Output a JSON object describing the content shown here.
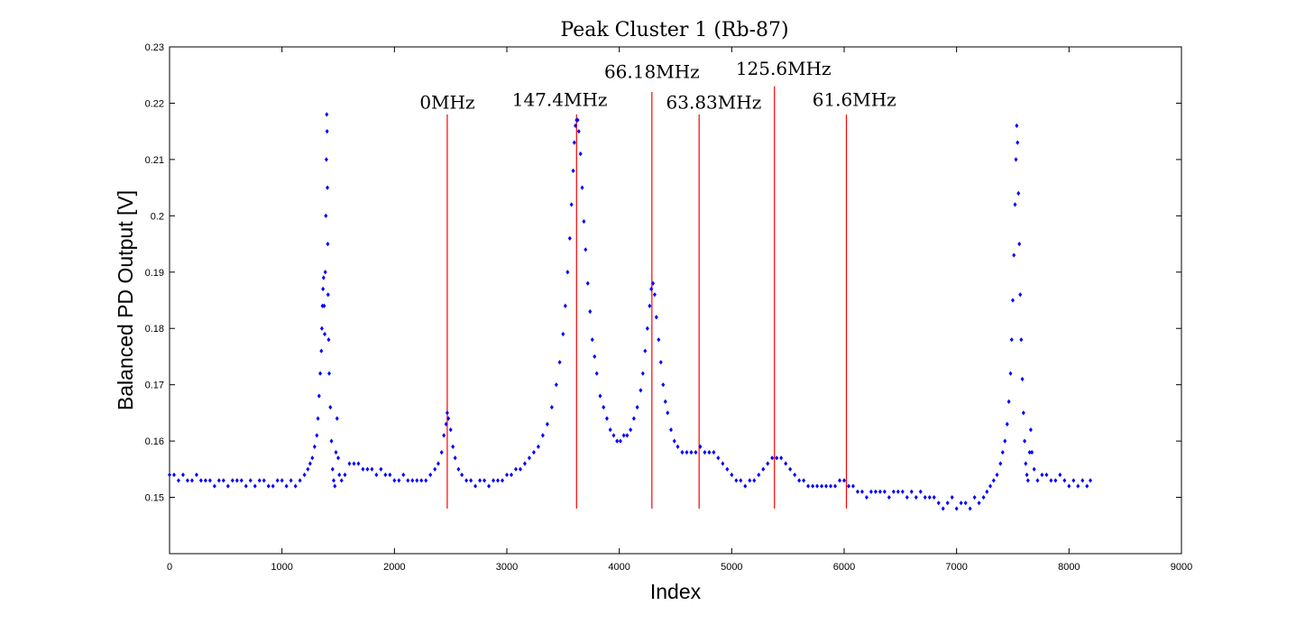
{
  "chart_data": {
    "type": "scatter",
    "title": "Peak Cluster 1 (Rb-87)",
    "xlabel": "Index",
    "ylabel": "Balanced PD Output [V]",
    "xlim": [
      0,
      9000
    ],
    "ylim": [
      0.14,
      0.23
    ],
    "xticks": [
      "0",
      "1000",
      "2000",
      "3000",
      "4000",
      "5000",
      "6000",
      "7000",
      "8000",
      "9000"
    ],
    "yticks": [
      "0.15",
      "0.16",
      "0.17",
      "0.18",
      "0.19",
      "0.2",
      "0.21",
      "0.22",
      "0.23"
    ],
    "grid": false,
    "marker_color": "#0000ff",
    "line_color": "#ff0000",
    "series": [
      {
        "points": [
          [
            0,
            0.154
          ],
          [
            40,
            0.154
          ],
          [
            80,
            0.153
          ],
          [
            120,
            0.154
          ],
          [
            160,
            0.153
          ],
          [
            200,
            0.153
          ],
          [
            240,
            0.154
          ],
          [
            280,
            0.153
          ],
          [
            320,
            0.153
          ],
          [
            360,
            0.153
          ],
          [
            400,
            0.152
          ],
          [
            440,
            0.153
          ],
          [
            480,
            0.153
          ],
          [
            520,
            0.152
          ],
          [
            560,
            0.153
          ],
          [
            600,
            0.153
          ],
          [
            640,
            0.153
          ],
          [
            680,
            0.152
          ],
          [
            720,
            0.153
          ],
          [
            760,
            0.152
          ],
          [
            800,
            0.153
          ],
          [
            840,
            0.153
          ],
          [
            880,
            0.152
          ],
          [
            920,
            0.152
          ],
          [
            960,
            0.153
          ],
          [
            1000,
            0.153
          ],
          [
            1040,
            0.152
          ],
          [
            1080,
            0.153
          ],
          [
            1120,
            0.152
          ],
          [
            1160,
            0.153
          ],
          [
            1200,
            0.154
          ],
          [
            1230,
            0.155
          ],
          [
            1250,
            0.156
          ],
          [
            1270,
            0.157
          ],
          [
            1290,
            0.159
          ],
          [
            1310,
            0.161
          ],
          [
            1320,
            0.164
          ],
          [
            1330,
            0.168
          ],
          [
            1340,
            0.172
          ],
          [
            1350,
            0.176
          ],
          [
            1355,
            0.18
          ],
          [
            1360,
            0.184
          ],
          [
            1365,
            0.187
          ],
          [
            1370,
            0.189
          ],
          [
            1375,
            0.184
          ],
          [
            1380,
            0.179
          ],
          [
            1385,
            0.19
          ],
          [
            1390,
            0.2
          ],
          [
            1395,
            0.21
          ],
          [
            1398,
            0.218
          ],
          [
            1401,
            0.215
          ],
          [
            1404,
            0.205
          ],
          [
            1407,
            0.195
          ],
          [
            1410,
            0.186
          ],
          [
            1415,
            0.178
          ],
          [
            1420,
            0.172
          ],
          [
            1430,
            0.166
          ],
          [
            1440,
            0.16
          ],
          [
            1450,
            0.155
          ],
          [
            1460,
            0.153
          ],
          [
            1470,
            0.152
          ],
          [
            1480,
            0.158
          ],
          [
            1490,
            0.164
          ],
          [
            1500,
            0.157
          ],
          [
            1510,
            0.154
          ],
          [
            1530,
            0.153
          ],
          [
            1560,
            0.154
          ],
          [
            1600,
            0.156
          ],
          [
            1640,
            0.156
          ],
          [
            1680,
            0.156
          ],
          [
            1720,
            0.155
          ],
          [
            1760,
            0.155
          ],
          [
            1800,
            0.155
          ],
          [
            1840,
            0.154
          ],
          [
            1880,
            0.155
          ],
          [
            1920,
            0.154
          ],
          [
            1960,
            0.154
          ],
          [
            2000,
            0.153
          ],
          [
            2040,
            0.153
          ],
          [
            2080,
            0.154
          ],
          [
            2120,
            0.153
          ],
          [
            2160,
            0.153
          ],
          [
            2200,
            0.153
          ],
          [
            2240,
            0.153
          ],
          [
            2280,
            0.153
          ],
          [
            2320,
            0.154
          ],
          [
            2360,
            0.155
          ],
          [
            2390,
            0.156
          ],
          [
            2420,
            0.158
          ],
          [
            2440,
            0.161
          ],
          [
            2460,
            0.163
          ],
          [
            2470,
            0.165
          ],
          [
            2480,
            0.164
          ],
          [
            2500,
            0.162
          ],
          [
            2520,
            0.159
          ],
          [
            2540,
            0.157
          ],
          [
            2570,
            0.155
          ],
          [
            2600,
            0.154
          ],
          [
            2640,
            0.153
          ],
          [
            2680,
            0.153
          ],
          [
            2720,
            0.152
          ],
          [
            2760,
            0.153
          ],
          [
            2800,
            0.153
          ],
          [
            2840,
            0.152
          ],
          [
            2880,
            0.153
          ],
          [
            2920,
            0.153
          ],
          [
            2960,
            0.153
          ],
          [
            3000,
            0.154
          ],
          [
            3040,
            0.154
          ],
          [
            3080,
            0.155
          ],
          [
            3120,
            0.155
          ],
          [
            3160,
            0.156
          ],
          [
            3200,
            0.157
          ],
          [
            3240,
            0.158
          ],
          [
            3280,
            0.159
          ],
          [
            3320,
            0.161
          ],
          [
            3360,
            0.163
          ],
          [
            3400,
            0.166
          ],
          [
            3440,
            0.17
          ],
          [
            3470,
            0.174
          ],
          [
            3500,
            0.179
          ],
          [
            3520,
            0.184
          ],
          [
            3540,
            0.19
          ],
          [
            3560,
            0.196
          ],
          [
            3575,
            0.202
          ],
          [
            3590,
            0.208
          ],
          [
            3600,
            0.213
          ],
          [
            3610,
            0.216
          ],
          [
            3620,
            0.217
          ],
          [
            3630,
            0.217
          ],
          [
            3640,
            0.215
          ],
          [
            3655,
            0.211
          ],
          [
            3670,
            0.205
          ],
          [
            3685,
            0.199
          ],
          [
            3700,
            0.194
          ],
          [
            3720,
            0.188
          ],
          [
            3740,
            0.183
          ],
          [
            3760,
            0.178
          ],
          [
            3780,
            0.175
          ],
          [
            3800,
            0.172
          ],
          [
            3830,
            0.168
          ],
          [
            3860,
            0.166
          ],
          [
            3890,
            0.164
          ],
          [
            3920,
            0.162
          ],
          [
            3950,
            0.161
          ],
          [
            3980,
            0.16
          ],
          [
            4010,
            0.16
          ],
          [
            4040,
            0.161
          ],
          [
            4070,
            0.161
          ],
          [
            4100,
            0.162
          ],
          [
            4130,
            0.164
          ],
          [
            4160,
            0.166
          ],
          [
            4190,
            0.169
          ],
          [
            4210,
            0.172
          ],
          [
            4230,
            0.176
          ],
          [
            4250,
            0.18
          ],
          [
            4270,
            0.184
          ],
          [
            4285,
            0.187
          ],
          [
            4300,
            0.188
          ],
          [
            4315,
            0.186
          ],
          [
            4330,
            0.182
          ],
          [
            4350,
            0.178
          ],
          [
            4370,
            0.174
          ],
          [
            4390,
            0.17
          ],
          [
            4410,
            0.167
          ],
          [
            4430,
            0.165
          ],
          [
            4460,
            0.162
          ],
          [
            4490,
            0.16
          ],
          [
            4520,
            0.159
          ],
          [
            4560,
            0.158
          ],
          [
            4600,
            0.158
          ],
          [
            4640,
            0.158
          ],
          [
            4680,
            0.158
          ],
          [
            4720,
            0.159
          ],
          [
            4760,
            0.158
          ],
          [
            4800,
            0.158
          ],
          [
            4840,
            0.158
          ],
          [
            4880,
            0.157
          ],
          [
            4920,
            0.156
          ],
          [
            4960,
            0.155
          ],
          [
            5000,
            0.154
          ],
          [
            5040,
            0.153
          ],
          [
            5080,
            0.153
          ],
          [
            5120,
            0.152
          ],
          [
            5160,
            0.153
          ],
          [
            5200,
            0.153
          ],
          [
            5240,
            0.154
          ],
          [
            5280,
            0.155
          ],
          [
            5320,
            0.156
          ],
          [
            5360,
            0.157
          ],
          [
            5400,
            0.157
          ],
          [
            5440,
            0.157
          ],
          [
            5480,
            0.156
          ],
          [
            5520,
            0.155
          ],
          [
            5560,
            0.154
          ],
          [
            5600,
            0.153
          ],
          [
            5640,
            0.153
          ],
          [
            5680,
            0.152
          ],
          [
            5720,
            0.152
          ],
          [
            5760,
            0.152
          ],
          [
            5800,
            0.152
          ],
          [
            5840,
            0.152
          ],
          [
            5880,
            0.152
          ],
          [
            5920,
            0.152
          ],
          [
            5960,
            0.153
          ],
          [
            6000,
            0.153
          ],
          [
            6040,
            0.152
          ],
          [
            6080,
            0.152
          ],
          [
            6120,
            0.151
          ],
          [
            6160,
            0.151
          ],
          [
            6200,
            0.15
          ],
          [
            6240,
            0.151
          ],
          [
            6280,
            0.151
          ],
          [
            6320,
            0.151
          ],
          [
            6360,
            0.151
          ],
          [
            6400,
            0.15
          ],
          [
            6440,
            0.151
          ],
          [
            6480,
            0.151
          ],
          [
            6520,
            0.151
          ],
          [
            6560,
            0.15
          ],
          [
            6600,
            0.151
          ],
          [
            6640,
            0.15
          ],
          [
            6680,
            0.151
          ],
          [
            6720,
            0.15
          ],
          [
            6760,
            0.15
          ],
          [
            6800,
            0.15
          ],
          [
            6840,
            0.149
          ],
          [
            6880,
            0.148
          ],
          [
            6920,
            0.149
          ],
          [
            6960,
            0.15
          ],
          [
            7000,
            0.148
          ],
          [
            7040,
            0.149
          ],
          [
            7080,
            0.149
          ],
          [
            7120,
            0.148
          ],
          [
            7160,
            0.15
          ],
          [
            7200,
            0.149
          ],
          [
            7240,
            0.15
          ],
          [
            7270,
            0.151
          ],
          [
            7300,
            0.152
          ],
          [
            7330,
            0.153
          ],
          [
            7360,
            0.154
          ],
          [
            7390,
            0.156
          ],
          [
            7410,
            0.158
          ],
          [
            7430,
            0.16
          ],
          [
            7450,
            0.163
          ],
          [
            7465,
            0.167
          ],
          [
            7480,
            0.172
          ],
          [
            7490,
            0.178
          ],
          [
            7500,
            0.185
          ],
          [
            7510,
            0.193
          ],
          [
            7520,
            0.202
          ],
          [
            7528,
            0.21
          ],
          [
            7535,
            0.216
          ],
          [
            7542,
            0.213
          ],
          [
            7550,
            0.204
          ],
          [
            7558,
            0.195
          ],
          [
            7566,
            0.186
          ],
          [
            7575,
            0.178
          ],
          [
            7585,
            0.171
          ],
          [
            7595,
            0.165
          ],
          [
            7605,
            0.16
          ],
          [
            7615,
            0.156
          ],
          [
            7625,
            0.154
          ],
          [
            7635,
            0.153
          ],
          [
            7650,
            0.158
          ],
          [
            7660,
            0.162
          ],
          [
            7670,
            0.158
          ],
          [
            7690,
            0.155
          ],
          [
            7720,
            0.153
          ],
          [
            7760,
            0.154
          ],
          [
            7800,
            0.154
          ],
          [
            7840,
            0.153
          ],
          [
            7880,
            0.153
          ],
          [
            7920,
            0.154
          ],
          [
            7960,
            0.153
          ],
          [
            8000,
            0.152
          ],
          [
            8040,
            0.153
          ],
          [
            8080,
            0.152
          ],
          [
            8120,
            0.153
          ],
          [
            8160,
            0.152
          ],
          [
            8190,
            0.153
          ]
        ]
      }
    ],
    "vlines": [
      {
        "x": 2470,
        "y_bottom": 0.148,
        "y_top": 0.218,
        "label": "0MHz",
        "label_x": 2470,
        "label_y": 0.219
      },
      {
        "x": 3620,
        "y_bottom": 0.148,
        "y_top": 0.218,
        "label": "147.4MHz",
        "label_x": 3470,
        "label_y": 0.2195
      },
      {
        "x": 4290,
        "y_bottom": 0.148,
        "y_top": 0.222,
        "label": "66.18MHz",
        "label_x": 4290,
        "label_y": 0.2245
      },
      {
        "x": 4710,
        "y_bottom": 0.148,
        "y_top": 0.218,
        "label": "63.83MHz",
        "label_x": 4840,
        "label_y": 0.219
      },
      {
        "x": 5380,
        "y_bottom": 0.148,
        "y_top": 0.223,
        "label": "125.6MHz",
        "label_x": 5460,
        "label_y": 0.225
      },
      {
        "x": 6020,
        "y_bottom": 0.148,
        "y_top": 0.218,
        "label": "61.6MHz",
        "label_x": 6090,
        "label_y": 0.2195
      }
    ]
  }
}
